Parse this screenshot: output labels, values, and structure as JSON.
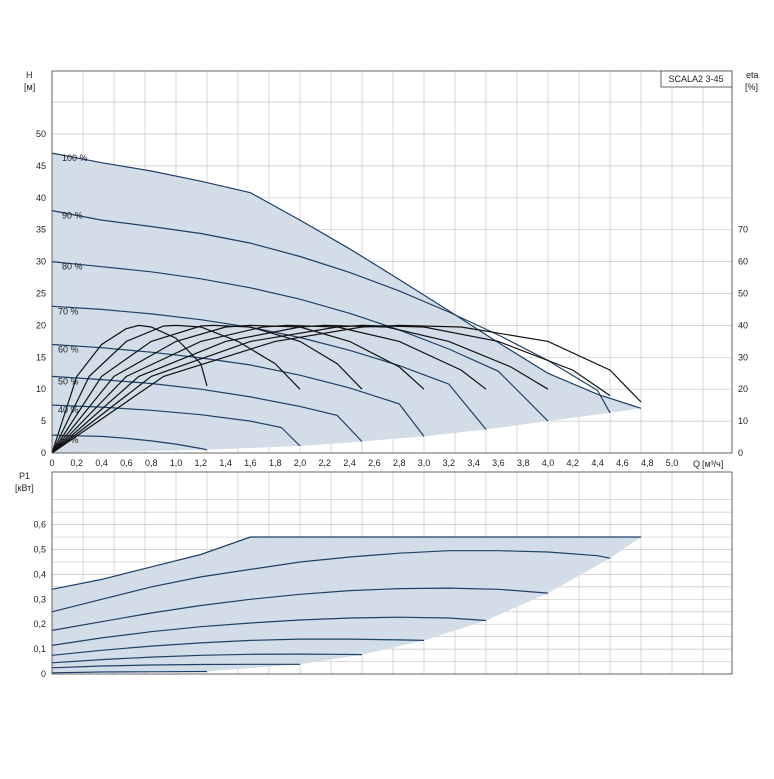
{
  "product_label": "SCALA2 3-45",
  "colors": {
    "envelope_fill": "#d2dde8",
    "pump_curve": "#1f3f66",
    "efficiency_curve": "#111111",
    "grid": "#c7c7c7"
  },
  "chart_data": [
    {
      "type": "line",
      "id": "head",
      "ylabel": "H",
      "yunit": "[м]",
      "xlabel": "Q",
      "xunit": "[м³/ч]",
      "xlim": [
        0,
        5.4
      ],
      "ylim": [
        0,
        55
      ],
      "yticks": [
        0,
        5,
        10,
        15,
        20,
        25,
        30,
        35,
        40,
        45,
        50
      ],
      "xticks": [
        "0",
        "0,2",
        "0,4",
        "0,6",
        "0,8",
        "1,0",
        "1,2",
        "1,4",
        "1,6",
        "1,8",
        "2,0",
        "2,2",
        "2,4",
        "2,6",
        "2,8",
        "3,0",
        "3,2",
        "3,4",
        "3,6",
        "3,8",
        "4,0",
        "4,2",
        "4,4",
        "4,6",
        "4,8",
        "5,0"
      ],
      "secondary_axis": {
        "label": "eta",
        "unit": "[%]",
        "lim": [
          0,
          85
        ],
        "ticks": [
          0,
          10,
          20,
          30,
          40,
          50,
          60,
          70
        ]
      },
      "grid": true,
      "series": [
        {
          "name": "100 %",
          "x": [
            0,
            0.4,
            0.8,
            1.2,
            1.6,
            2.0,
            2.4,
            2.8,
            3.2,
            3.6,
            4.0,
            4.4,
            4.75
          ],
          "y": [
            47,
            45.5,
            44.2,
            42.6,
            40.8,
            36.5,
            32,
            27.2,
            22.3,
            17.3,
            12.5,
            9.2,
            7
          ]
        },
        {
          "name": "90 %",
          "x": [
            0,
            0.4,
            0.8,
            1.2,
            1.6,
            2.0,
            2.4,
            2.8,
            3.2,
            3.6,
            4.0,
            4.4,
            4.5
          ],
          "y": [
            38,
            36.5,
            35.5,
            34.4,
            32.9,
            30.8,
            28.3,
            25.4,
            22.1,
            18.5,
            14.5,
            9.8,
            6.3
          ]
        },
        {
          "name": "80 %",
          "x": [
            0,
            0.4,
            0.8,
            1.2,
            1.6,
            2.0,
            2.4,
            2.8,
            3.2,
            3.6,
            4.0
          ],
          "y": [
            30,
            29.2,
            28.4,
            27.3,
            25.9,
            24.1,
            21.9,
            19.3,
            16.3,
            12.8,
            5
          ]
        },
        {
          "name": "70 %",
          "x": [
            0,
            0.4,
            0.8,
            1.2,
            1.6,
            2.0,
            2.4,
            2.8,
            3.2,
            3.5
          ],
          "y": [
            23,
            22.5,
            21.8,
            20.9,
            19.7,
            18.1,
            16.1,
            13.7,
            10.8,
            3.7
          ]
        },
        {
          "name": "60 %",
          "x": [
            0,
            0.4,
            0.8,
            1.2,
            1.6,
            2.0,
            2.4,
            2.8,
            3.0
          ],
          "y": [
            17,
            16.5,
            15.8,
            14.9,
            13.8,
            12.2,
            10.2,
            7.7,
            2.6
          ]
        },
        {
          "name": "50 %",
          "x": [
            0,
            0.4,
            0.8,
            1.2,
            1.6,
            2.0,
            2.3,
            2.5
          ],
          "y": [
            12,
            11.5,
            10.9,
            10.0,
            8.8,
            7.3,
            5.9,
            1.8
          ]
        },
        {
          "name": "40 %",
          "x": [
            0,
            0.4,
            0.8,
            1.2,
            1.6,
            1.85,
            2.0
          ],
          "y": [
            7.5,
            7.2,
            6.7,
            6.0,
            5.0,
            4.0,
            1.1
          ]
        },
        {
          "name": "25 %",
          "x": [
            0,
            0.2,
            0.4,
            0.6,
            0.8,
            1.0,
            1.2,
            1.25
          ],
          "y": [
            2.8,
            2.7,
            2.6,
            2.3,
            1.9,
            1.4,
            0.7,
            0.5
          ]
        }
      ],
      "envelope": {
        "upper": {
          "x": [
            0,
            0.4,
            0.8,
            1.2,
            1.6,
            2.0,
            2.4,
            2.8,
            3.2,
            3.6,
            4.0,
            4.4,
            4.75
          ],
          "y": [
            47,
            45.5,
            44.2,
            42.6,
            40.8,
            36.5,
            32,
            27.2,
            22.3,
            17.3,
            12.5,
            9.2,
            7
          ]
        },
        "lower": {
          "x": [
            0,
            1.25,
            2.0,
            2.5,
            3.0,
            3.5,
            4.0,
            4.5,
            4.75
          ],
          "y": [
            0,
            0.5,
            1.1,
            1.8,
            2.6,
            3.7,
            5.0,
            6.3,
            7
          ]
        }
      },
      "efficiency_curves": [
        {
          "x": [
            0,
            0.2,
            0.4,
            0.6,
            0.7,
            0.8,
            1.0,
            1.2,
            1.25
          ],
          "eta": [
            0,
            24,
            34,
            39,
            40,
            39.5,
            36,
            28,
            21
          ]
        },
        {
          "x": [
            0,
            0.3,
            0.6,
            0.9,
            1.0,
            1.2,
            1.5,
            1.8,
            2.0
          ],
          "eta": [
            0,
            24,
            35,
            39.8,
            40,
            39.5,
            35,
            28,
            20
          ]
        },
        {
          "x": [
            0,
            0.4,
            0.8,
            1.2,
            1.3,
            1.6,
            2.0,
            2.3,
            2.5
          ],
          "eta": [
            0,
            24,
            35,
            39.8,
            40,
            39.5,
            35,
            28,
            20
          ]
        },
        {
          "x": [
            0,
            0.5,
            1.0,
            1.4,
            1.6,
            2.0,
            2.4,
            2.8,
            3.0
          ],
          "eta": [
            0,
            24,
            35,
            39.5,
            40,
            39.5,
            35,
            27,
            20
          ]
        },
        {
          "x": [
            0,
            0.6,
            1.2,
            1.7,
            1.9,
            2.3,
            2.8,
            3.3,
            3.5
          ],
          "eta": [
            0,
            24,
            35,
            39.5,
            40,
            39.5,
            35,
            26,
            20
          ]
        },
        {
          "x": [
            0,
            0.7,
            1.4,
            2.0,
            2.2,
            2.7,
            3.2,
            3.7,
            4.0
          ],
          "eta": [
            0,
            24,
            35,
            39.5,
            40,
            39.5,
            35,
            27,
            20
          ]
        },
        {
          "x": [
            0,
            0.8,
            1.6,
            2.3,
            2.5,
            3.0,
            3.6,
            4.2,
            4.5
          ],
          "eta": [
            0,
            24,
            35,
            39.5,
            40,
            39.5,
            35,
            26,
            18
          ]
        },
        {
          "x": [
            0,
            0.9,
            1.8,
            2.5,
            2.8,
            3.3,
            4.0,
            4.5,
            4.75
          ],
          "eta": [
            0,
            24,
            35,
            39.5,
            40,
            39.5,
            35,
            26,
            16
          ]
        }
      ]
    },
    {
      "type": "line",
      "id": "power",
      "ylabel": "P1",
      "yunit": "[кВт]",
      "xlim": [
        0,
        5.4
      ],
      "ylim": [
        0,
        0.7
      ],
      "yticks": [
        "0",
        "0,1",
        "0,2",
        "0,3",
        "0,4",
        "0,5",
        "0,6"
      ],
      "grid": true,
      "series": [
        {
          "x": [
            0,
            0.4,
            0.8,
            1.2,
            1.6,
            2.0,
            2.4,
            2.8,
            3.2,
            3.6,
            4.0,
            4.4,
            4.75
          ],
          "y": [
            0.34,
            0.38,
            0.43,
            0.48,
            0.55,
            0.55,
            0.55,
            0.55,
            0.55,
            0.55,
            0.55,
            0.55,
            0.55
          ]
        },
        {
          "x": [
            0,
            0.4,
            0.8,
            1.2,
            1.6,
            2.0,
            2.4,
            2.8,
            3.2,
            3.6,
            4.0,
            4.4,
            4.5
          ],
          "y": [
            0.25,
            0.3,
            0.35,
            0.39,
            0.42,
            0.45,
            0.47,
            0.485,
            0.495,
            0.495,
            0.49,
            0.475,
            0.465
          ]
        },
        {
          "x": [
            0,
            0.4,
            0.8,
            1.2,
            1.6,
            2.0,
            2.4,
            2.8,
            3.2,
            3.6,
            4.0
          ],
          "y": [
            0.175,
            0.21,
            0.245,
            0.275,
            0.3,
            0.32,
            0.335,
            0.343,
            0.345,
            0.34,
            0.325
          ]
        },
        {
          "x": [
            0,
            0.4,
            0.8,
            1.2,
            1.6,
            2.0,
            2.4,
            2.8,
            3.2,
            3.5
          ],
          "y": [
            0.115,
            0.145,
            0.17,
            0.19,
            0.205,
            0.217,
            0.225,
            0.228,
            0.225,
            0.215
          ]
        },
        {
          "x": [
            0,
            0.4,
            0.8,
            1.2,
            1.6,
            2.0,
            2.4,
            2.8,
            3.0
          ],
          "y": [
            0.075,
            0.095,
            0.112,
            0.125,
            0.135,
            0.14,
            0.14,
            0.137,
            0.135
          ]
        },
        {
          "x": [
            0,
            0.4,
            0.8,
            1.2,
            1.6,
            2.0,
            2.3,
            2.5
          ],
          "y": [
            0.045,
            0.058,
            0.068,
            0.075,
            0.079,
            0.08,
            0.079,
            0.078
          ]
        },
        {
          "x": [
            0,
            0.4,
            0.8,
            1.2,
            1.6,
            2.0
          ],
          "y": [
            0.025,
            0.032,
            0.036,
            0.038,
            0.039,
            0.039
          ]
        },
        {
          "x": [
            0,
            0.4,
            0.8,
            1.25
          ],
          "y": [
            0.005,
            0.008,
            0.009,
            0.01
          ]
        }
      ],
      "envelope": {
        "upper": {
          "x": [
            0,
            0.4,
            0.8,
            1.2,
            1.6,
            2.0,
            2.4,
            2.8,
            3.2,
            3.6,
            4.0,
            4.4,
            4.75
          ],
          "y": [
            0.34,
            0.38,
            0.43,
            0.48,
            0.55,
            0.55,
            0.55,
            0.55,
            0.55,
            0.55,
            0.55,
            0.55,
            0.55
          ]
        },
        "lower": {
          "x": [
            0,
            1.25,
            2.0,
            2.5,
            3.0,
            3.5,
            4.0,
            4.5,
            4.75
          ],
          "y": [
            0.005,
            0.01,
            0.039,
            0.078,
            0.135,
            0.215,
            0.325,
            0.465,
            0.55
          ]
        }
      }
    }
  ]
}
